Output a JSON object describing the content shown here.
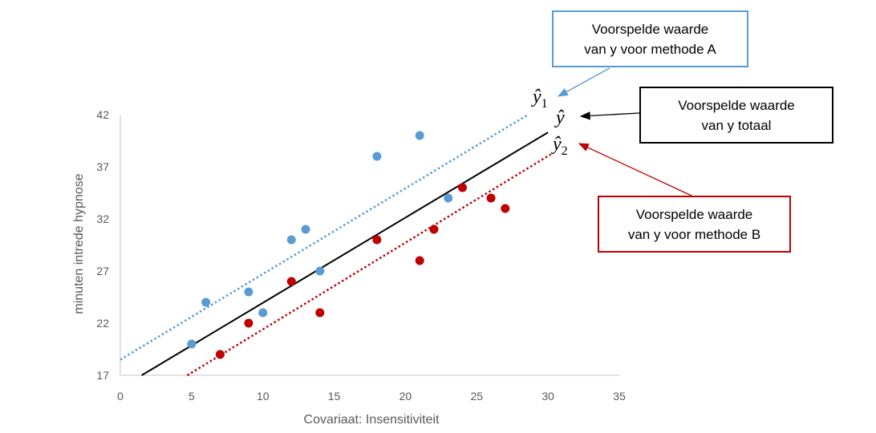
{
  "chart_data": {
    "type": "scatter",
    "xlabel": "Covariaat: Insensitiviteit",
    "ylabel": "minuten intrede hypnose",
    "xlim": [
      0,
      35
    ],
    "ylim": [
      17,
      42
    ],
    "x_ticks": [
      "0",
      "5",
      "10",
      "15",
      "20",
      "25",
      "30",
      "35"
    ],
    "y_ticks": [
      "42",
      "37",
      "32",
      "27",
      "22",
      "17"
    ],
    "grid": false,
    "series": [
      {
        "color": "#5b9bd5",
        "points": [
          [
            5,
            20
          ],
          [
            6,
            24
          ],
          [
            9,
            25
          ],
          [
            10,
            23
          ],
          [
            12,
            30
          ],
          [
            13,
            31
          ],
          [
            14,
            27
          ],
          [
            18,
            38
          ],
          [
            21,
            40
          ],
          [
            23,
            34
          ]
        ]
      },
      {
        "color": "#c00000",
        "points": [
          [
            7,
            19
          ],
          [
            9,
            22
          ],
          [
            12,
            26
          ],
          [
            14,
            23
          ],
          [
            18,
            30
          ],
          [
            21,
            28
          ],
          [
            22,
            31
          ],
          [
            24,
            35
          ],
          [
            26,
            34
          ],
          [
            27,
            33
          ]
        ]
      }
    ],
    "lines": [
      {
        "label": "ŷ1",
        "color": "#5b9bd5",
        "style": "dotted",
        "x": [
          0,
          28.6
        ],
        "y": [
          18.5,
          42
        ]
      },
      {
        "label": "ŷ",
        "color": "#000000",
        "style": "solid",
        "x": [
          1.5,
          30
        ],
        "y": [
          17,
          40.3
        ]
      },
      {
        "label": "ŷ2",
        "color": "#c00000",
        "style": "dotted",
        "x": [
          4.7,
          30.2
        ],
        "y": [
          17,
          38.2
        ]
      }
    ],
    "annotations": [
      {
        "text": [
          "Voorspelde waarde",
          "van y voor methode A"
        ],
        "color": "#5b9bd5",
        "points_to": "ŷ1"
      },
      {
        "text": [
          "Voorspelde waarde",
          "van y totaal"
        ],
        "color": "#000000",
        "points_to": "ŷ"
      },
      {
        "text": [
          "Voorspelde waarde",
          "van y voor methode B"
        ],
        "color": "#c00000",
        "points_to": "ŷ2"
      }
    ]
  },
  "labels": {
    "yhat1_main": "ŷ",
    "yhat1_sub": "1",
    "yhat_main": "ŷ",
    "yhat2_main": "ŷ",
    "yhat2_sub": "2"
  },
  "boxes": {
    "a_line1": "Voorspelde waarde",
    "a_line2": "van y voor methode A",
    "t_line1": "Voorspelde waarde",
    "t_line2": "van y totaal",
    "b_line1": "Voorspelde waarde",
    "b_line2": "van y voor methode B"
  }
}
